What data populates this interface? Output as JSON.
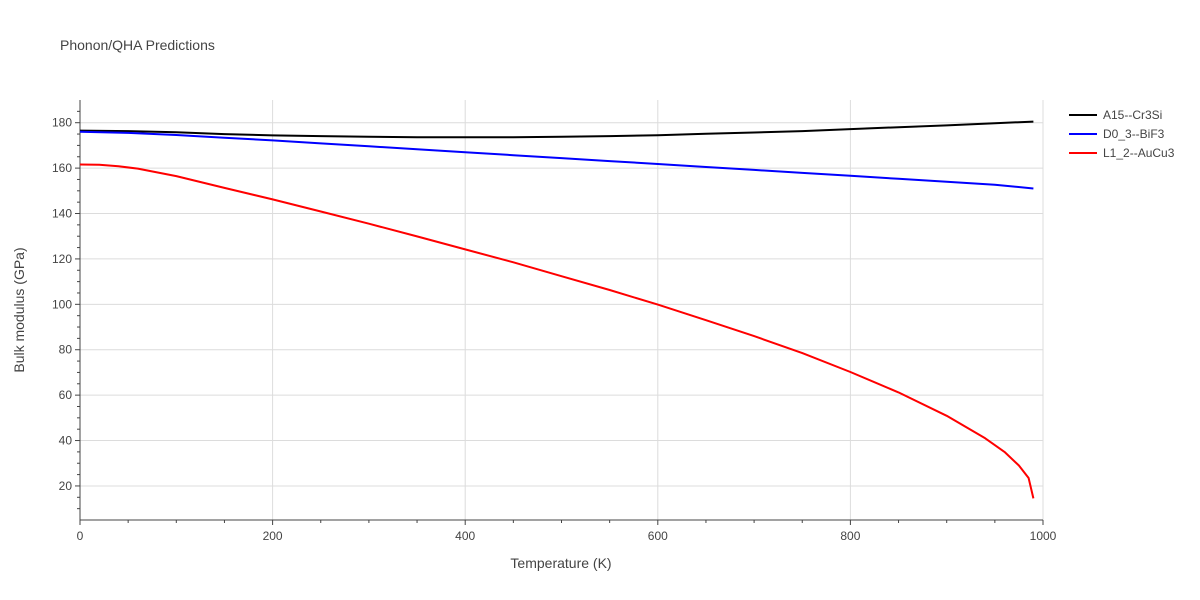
{
  "chart_data": {
    "type": "line",
    "title": "Phonon/QHA Predictions",
    "xlabel": "Temperature (K)",
    "ylabel": "Bulk modulus (GPa)",
    "xlim": [
      0,
      1000
    ],
    "ylim": [
      5,
      190
    ],
    "xticks": [
      0,
      200,
      400,
      600,
      800,
      1000
    ],
    "yticks": [
      20,
      40,
      60,
      80,
      100,
      120,
      140,
      160,
      180
    ],
    "grid": true,
    "legend_position": "top-right",
    "series": [
      {
        "name": "A15--Cr3Si",
        "color": "#000000",
        "x": [
          0,
          50,
          100,
          150,
          200,
          250,
          300,
          350,
          400,
          450,
          500,
          550,
          600,
          650,
          700,
          750,
          800,
          850,
          900,
          950,
          990
        ],
        "y": [
          176.5,
          176.3,
          175.8,
          175.0,
          174.4,
          174.1,
          173.8,
          173.6,
          173.6,
          173.6,
          173.8,
          174.1,
          174.5,
          175.1,
          175.7,
          176.3,
          177.2,
          178.0,
          178.8,
          179.8,
          180.5
        ]
      },
      {
        "name": "D0_3--BiF3",
        "color": "#0000ff",
        "x": [
          0,
          50,
          100,
          150,
          200,
          250,
          300,
          350,
          400,
          450,
          500,
          550,
          600,
          650,
          700,
          750,
          800,
          850,
          900,
          950,
          990
        ],
        "y": [
          176.0,
          175.5,
          174.6,
          173.4,
          172.2,
          170.9,
          169.6,
          168.3,
          167.0,
          165.7,
          164.4,
          163.1,
          161.8,
          160.5,
          159.2,
          157.9,
          156.6,
          155.3,
          154.0,
          152.7,
          151.0
        ]
      },
      {
        "name": "L1_2--AuCu3",
        "color": "#ff0000",
        "x": [
          0,
          20,
          40,
          60,
          100,
          150,
          200,
          250,
          300,
          350,
          400,
          450,
          500,
          550,
          600,
          650,
          700,
          750,
          800,
          850,
          900,
          940,
          960,
          975,
          985,
          990
        ],
        "y": [
          161.6,
          161.5,
          160.8,
          159.8,
          156.5,
          151.3,
          146.2,
          140.9,
          135.5,
          129.9,
          124.2,
          118.5,
          112.4,
          106.3,
          99.9,
          93.0,
          86.0,
          78.5,
          70.2,
          61.2,
          50.9,
          41.0,
          35.0,
          29.0,
          23.5,
          14.5
        ]
      }
    ]
  }
}
